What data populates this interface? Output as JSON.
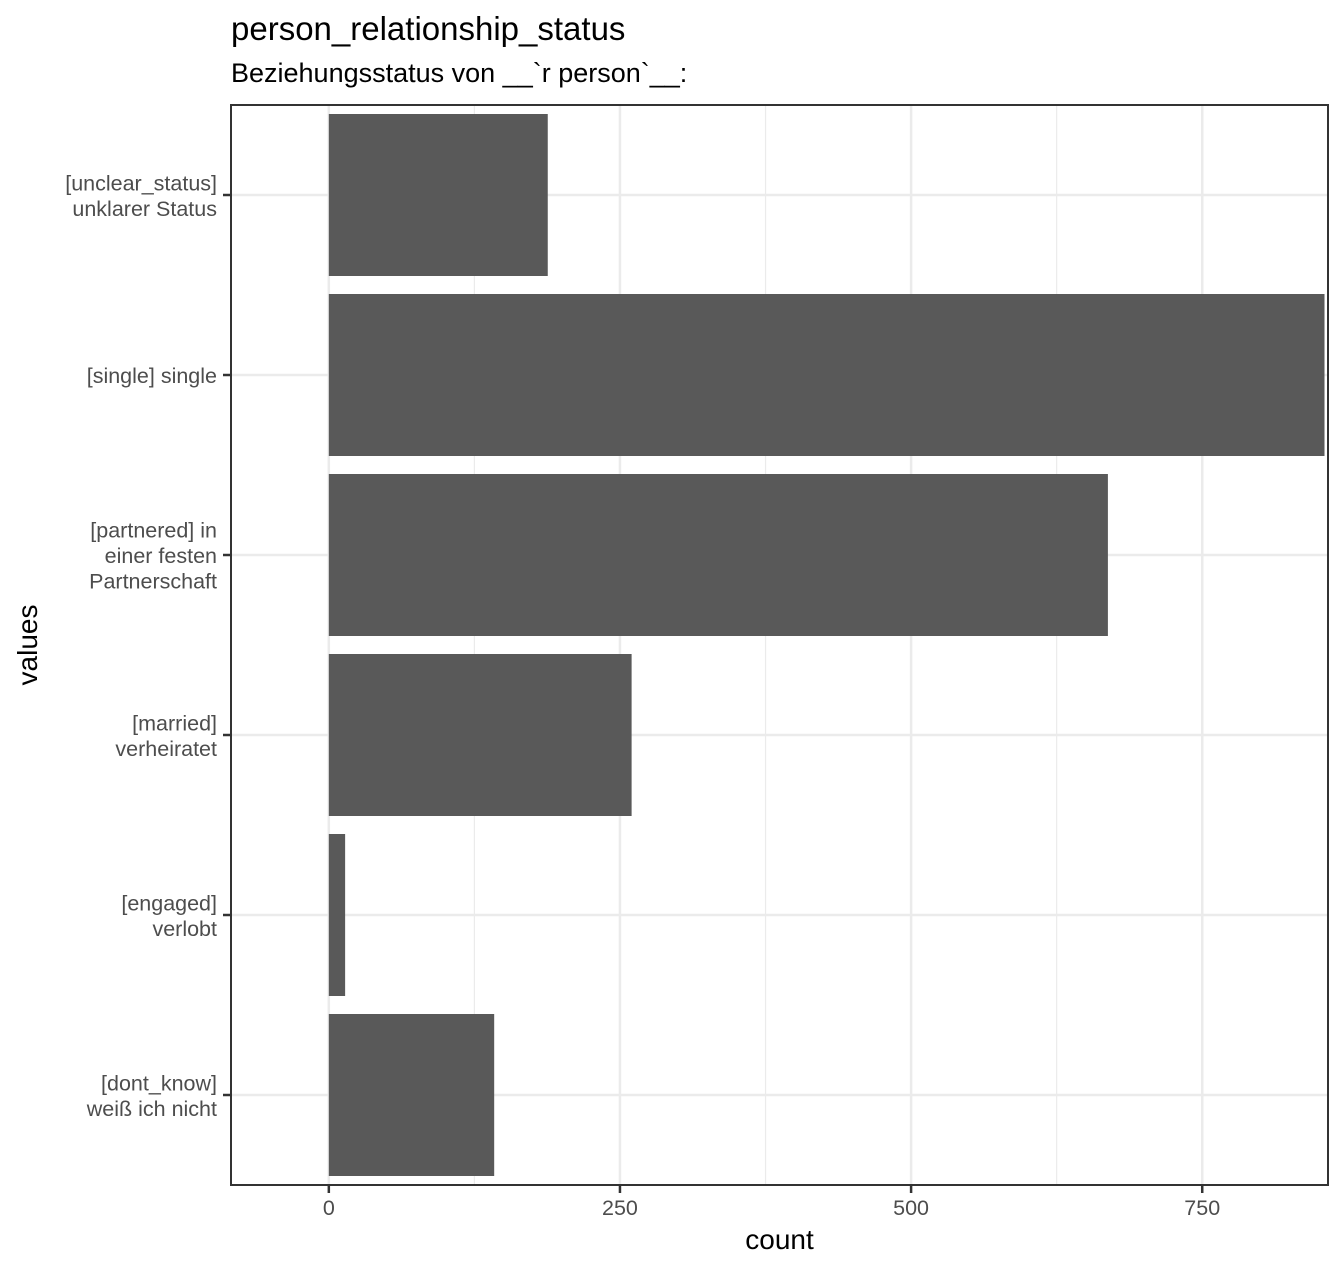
{
  "chart_data": {
    "type": "bar",
    "orientation": "horizontal",
    "title": "person_relationship_status",
    "subtitle": "Beziehungsstatus von __`r person`__:",
    "xlabel": "count",
    "ylabel": "values",
    "xlim": [
      -84,
      858
    ],
    "xticks": [
      0,
      250,
      500,
      750
    ],
    "grid": true,
    "categories": [
      [
        "[unclear_status]",
        "unklarer Status"
      ],
      [
        "[single] single"
      ],
      [
        "[partnered] in",
        "einer festen",
        "Partnerschaft"
      ],
      [
        "[married]",
        "verheiratet"
      ],
      [
        "[engaged]",
        "verlobt"
      ],
      [
        "[dont_know]",
        "weiß ich nicht"
      ]
    ],
    "values": [
      188,
      855,
      669,
      260,
      14,
      142
    ],
    "colors": {
      "bar": "#595959",
      "grid": "#ebebeb",
      "axis": "#333333",
      "tick_label": "#4d4d4d"
    }
  }
}
